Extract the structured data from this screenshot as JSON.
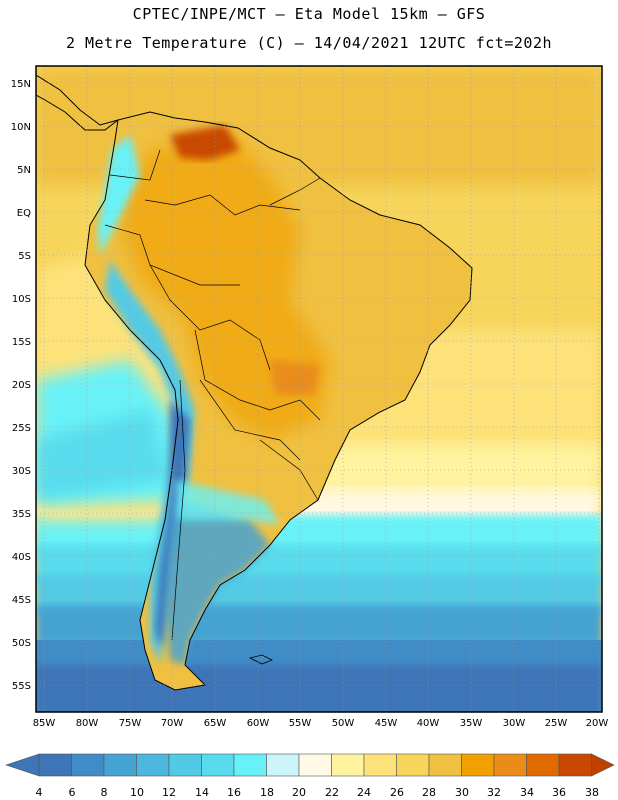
{
  "header": {
    "line1": "CPTEC/INPE/MCT  –   Eta Model 15km  – GFS",
    "line2": "2 Metre Temperature (C) – 14/04/2021 12UTC fct=202h"
  },
  "map": {
    "lat_labels": [
      "15N",
      "10N",
      "5N",
      "EQ",
      "5S",
      "10S",
      "15S",
      "20S",
      "25S",
      "30S",
      "35S",
      "40S",
      "45S",
      "50S",
      "55S"
    ],
    "lon_labels": [
      "85W",
      "80W",
      "75W",
      "70W",
      "65W",
      "60W",
      "55W",
      "50W",
      "45W",
      "40W",
      "35W",
      "30W",
      "25W",
      "20W"
    ]
  },
  "colorbar": {
    "labels": [
      "4",
      "6",
      "8",
      "10",
      "12",
      "14",
      "16",
      "18",
      "20",
      "22",
      "24",
      "26",
      "28",
      "30",
      "32",
      "34",
      "36",
      "38"
    ],
    "colors": [
      "#3e74b8",
      "#3f8cc6",
      "#45a3d3",
      "#4cb8df",
      "#52cae6",
      "#58dced",
      "#67f2f8",
      "#ccf4fb",
      "#fff9e6",
      "#fff3a0",
      "#fde27a",
      "#f6d55a",
      "#f0c040",
      "#f0a000",
      "#ea8c1a",
      "#e06a00",
      "#c84800"
    ],
    "low_color": "#3e74b8",
    "high_color": "#c04000"
  }
}
